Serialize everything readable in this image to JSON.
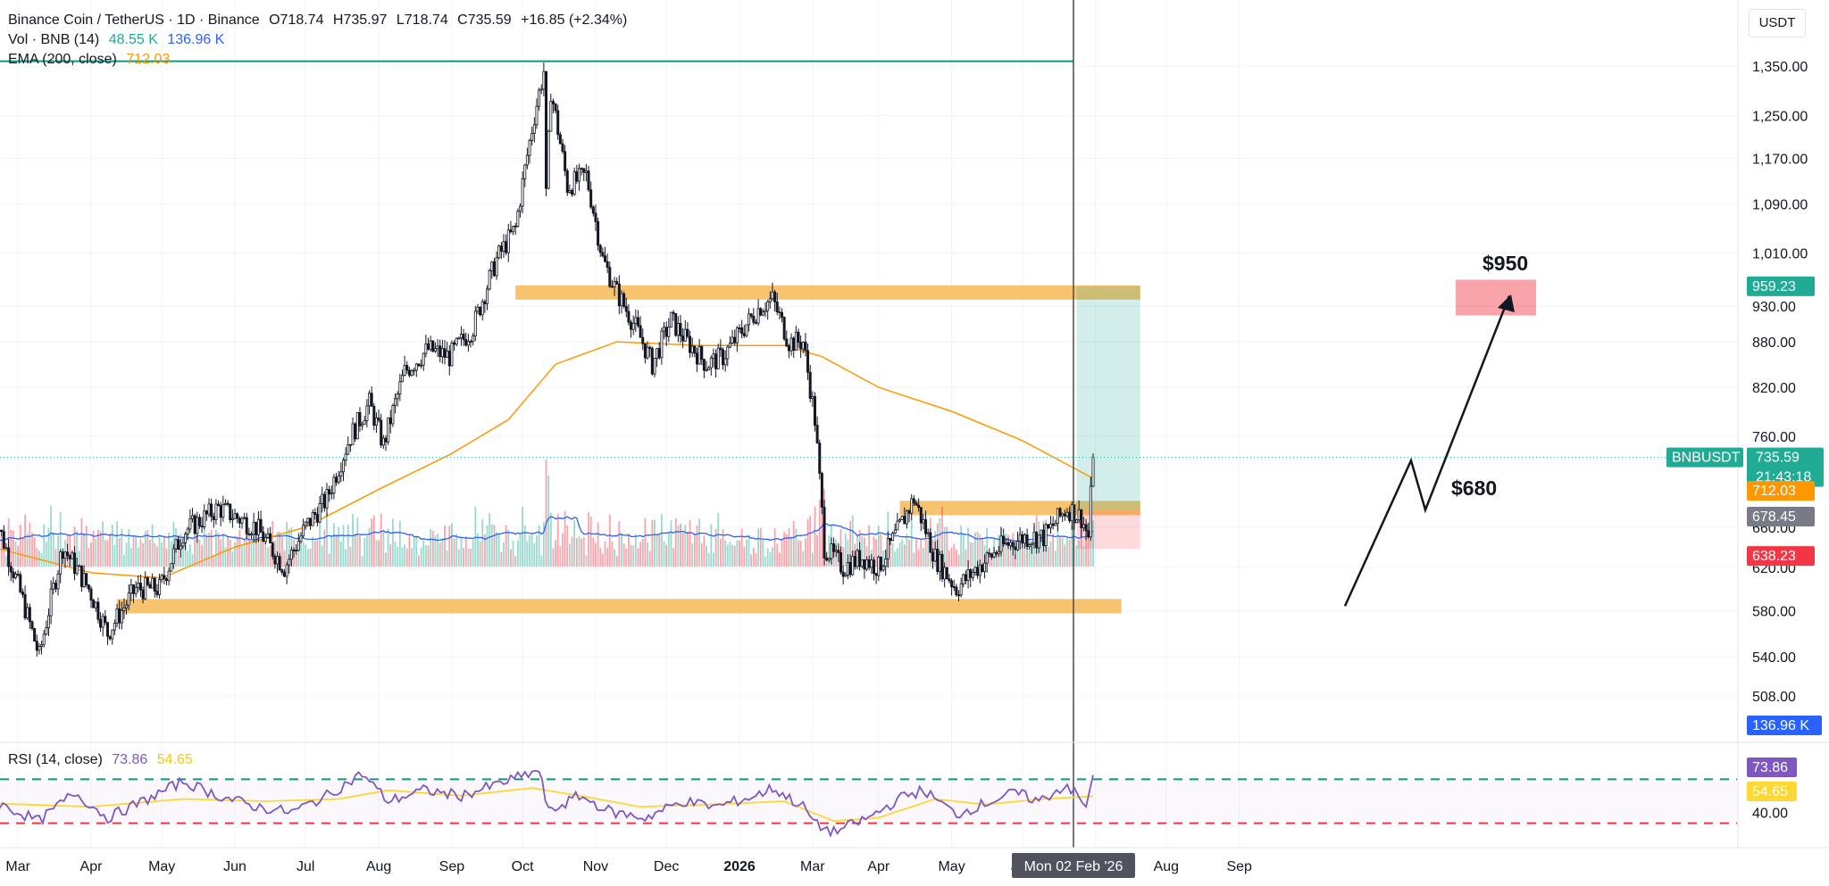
{
  "header": {
    "symbol": "Binance Coin / TetherUS · 1D · Binance",
    "open": "O718.74",
    "high": "H735.97",
    "low": "L718.74",
    "close": "C735.59",
    "change": "+16.85 (+2.34%)",
    "vol_label": "Vol · BNB (14)",
    "vol_value": "48.55 K",
    "vol_ma": "136.96 K",
    "ema_label": "EMA (200, close)",
    "ema_value": "712.03",
    "rsi_label": "RSI (14, close)",
    "rsi_value": "73.86",
    "rsi_ma": "54.65",
    "currency": "USDT"
  },
  "colors": {
    "up": "#22ab94",
    "down": "#f23645",
    "candle": "#131722",
    "ema": "#ff9800",
    "zone": "#f7b955",
    "vol_ma": "#2962ff",
    "rsi": "#7e57c2",
    "rsi_ma": "#fdd835",
    "target_zone": "#22ab94",
    "stop_zone": "#f23645"
  },
  "chart_data": {
    "type": "candlestick",
    "price_axis": {
      "scale": "log",
      "ticks": [
        "1,350.00",
        "1,250.00",
        "1,170.00",
        "1,090.00",
        "1,010.00",
        "930.00",
        "880.00",
        "820.00",
        "760.00",
        "660.00",
        "620.00",
        "580.00",
        "540.00",
        "508.00"
      ]
    },
    "time_axis": [
      "Mar",
      "Apr",
      "May",
      "Jun",
      "Jul",
      "Aug",
      "Sep",
      "Oct",
      "Nov",
      "Dec",
      "2026",
      "Mar",
      "Apr",
      "May",
      "Jun",
      "Jul",
      "Aug",
      "Sep"
    ],
    "crosshair_date": "Mon 02 Feb '26",
    "price_path": [
      [
        "2025-02-18",
        680
      ],
      [
        "2025-02-28",
        610
      ],
      [
        "2025-03-10",
        540
      ],
      [
        "2025-03-20",
        640
      ],
      [
        "2025-03-31",
        600
      ],
      [
        "2025-04-08",
        560
      ],
      [
        "2025-04-20",
        600
      ],
      [
        "2025-04-30",
        600
      ],
      [
        "2025-05-10",
        655
      ],
      [
        "2025-05-25",
        680
      ],
      [
        "2025-06-10",
        660
      ],
      [
        "2025-06-22",
        620
      ],
      [
        "2025-07-01",
        660
      ],
      [
        "2025-07-10",
        690
      ],
      [
        "2025-07-20",
        760
      ],
      [
        "2025-07-28",
        800
      ],
      [
        "2025-08-03",
        750
      ],
      [
        "2025-08-12",
        840
      ],
      [
        "2025-08-22",
        870
      ],
      [
        "2025-08-31",
        860
      ],
      [
        "2025-09-10",
        900
      ],
      [
        "2025-09-20",
        1000
      ],
      [
        "2025-09-28",
        1050
      ],
      [
        "2025-10-06",
        1250
      ],
      [
        "2025-10-10",
        1340
      ],
      [
        "2025-10-11",
        1100
      ],
      [
        "2025-10-13",
        1300
      ],
      [
        "2025-10-20",
        1120
      ],
      [
        "2025-10-28",
        1140
      ],
      [
        "2025-11-04",
        1000
      ],
      [
        "2025-11-10",
        950
      ],
      [
        "2025-11-18",
        900
      ],
      [
        "2025-11-25",
        850
      ],
      [
        "2025-12-03",
        910
      ],
      [
        "2025-12-10",
        880
      ],
      [
        "2025-12-18",
        850
      ],
      [
        "2025-12-25",
        860
      ],
      [
        "2026-01-03",
        900
      ],
      [
        "2026-01-10",
        930
      ],
      [
        "2026-01-15",
        940
      ],
      [
        "2026-01-22",
        880
      ],
      [
        "2026-01-28",
        880
      ],
      [
        "2026-02-02",
        780
      ],
      [
        "2026-02-06",
        640
      ],
      [
        "2026-02-14",
        620
      ],
      [
        "2026-02-22",
        630
      ],
      [
        "2026-03-01",
        620
      ],
      [
        "2026-03-10",
        660
      ],
      [
        "2026-03-16",
        690
      ],
      [
        "2026-03-25",
        630
      ],
      [
        "2026-04-03",
        600
      ],
      [
        "2026-04-12",
        620
      ],
      [
        "2026-04-22",
        640
      ],
      [
        "2026-05-02",
        650
      ],
      [
        "2026-05-10",
        650
      ],
      [
        "2026-05-20",
        680
      ],
      [
        "2026-05-26",
        670
      ],
      [
        "2026-05-29",
        650
      ],
      [
        "2026-05-31",
        735.59
      ]
    ],
    "ema_200_path": [
      [
        "2025-02-18",
        640
      ],
      [
        "2025-04-01",
        615
      ],
      [
        "2025-05-01",
        610
      ],
      [
        "2025-06-01",
        640
      ],
      [
        "2025-07-01",
        660
      ],
      [
        "2025-08-01",
        700
      ],
      [
        "2025-09-01",
        740
      ],
      [
        "2025-09-25",
        780
      ],
      [
        "2025-10-15",
        850
      ],
      [
        "2025-11-10",
        880
      ],
      [
        "2025-12-15",
        875
      ],
      [
        "2026-01-20",
        875
      ],
      [
        "2026-02-05",
        860
      ],
      [
        "2026-03-01",
        820
      ],
      [
        "2026-04-01",
        790
      ],
      [
        "2026-05-01",
        755
      ],
      [
        "2026-05-31",
        712.03
      ]
    ],
    "zones": [
      {
        "price": 950,
        "from": "2025-09-28",
        "to": "2026-06-20"
      },
      {
        "price": 680,
        "from": "2026-03-10",
        "to": "2026-06-20"
      },
      {
        "price": 584,
        "from": "2025-04-12",
        "to": "2026-06-12"
      }
    ],
    "position": {
      "entry": 678.45,
      "target": 959.23,
      "stop": 638.23,
      "from": "2026-05-24",
      "to": "2026-06-20",
      "target_label": "$950",
      "entry_label": "$680"
    },
    "price_labels": [
      {
        "text": "959.23",
        "price": 959.23,
        "color": "#22ab94"
      },
      {
        "text": "BNBUSDT",
        "price": 735.59,
        "color": "#22ab94"
      },
      {
        "text": "735.59",
        "price": 735.59,
        "color": "#22ab94"
      },
      {
        "text": "21:43:18",
        "price": 735.59,
        "color": "#22ab94"
      },
      {
        "text": "712.03",
        "price": 712.03,
        "color": "#ff9800"
      },
      {
        "text": "678.45",
        "price": 678.45,
        "color": "#787b86"
      },
      {
        "text": "638.23",
        "price": 638.23,
        "color": "#f23645"
      },
      {
        "text": "136.96 K",
        "price": null,
        "color": "#2962ff"
      }
    ],
    "rsi": {
      "upper": 70,
      "lower": 30,
      "ticks": [
        "40.00"
      ],
      "badges": [
        "73.86",
        "54.65"
      ],
      "path": [
        [
          "2025-02-18",
          50
        ],
        [
          "2025-03-10",
          32
        ],
        [
          "2025-03-25",
          58
        ],
        [
          "2025-04-08",
          35
        ],
        [
          "2025-04-25",
          52
        ],
        [
          "2025-05-10",
          68
        ],
        [
          "2025-05-25",
          55
        ],
        [
          "2025-06-10",
          45
        ],
        [
          "2025-06-25",
          40
        ],
        [
          "2025-07-10",
          55
        ],
        [
          "2025-07-25",
          75
        ],
        [
          "2025-08-05",
          50
        ],
        [
          "2025-08-20",
          60
        ],
        [
          "2025-09-05",
          55
        ],
        [
          "2025-09-20",
          65
        ],
        [
          "2025-10-08",
          78
        ],
        [
          "2025-10-12",
          40
        ],
        [
          "2025-10-25",
          55
        ],
        [
          "2025-11-08",
          40
        ],
        [
          "2025-11-22",
          35
        ],
        [
          "2025-12-08",
          50
        ],
        [
          "2025-12-22",
          45
        ],
        [
          "2026-01-08",
          55
        ],
        [
          "2026-01-15",
          62
        ],
        [
          "2026-01-28",
          45
        ],
        [
          "2026-02-03",
          28
        ],
        [
          "2026-02-10",
          22
        ],
        [
          "2026-02-25",
          35
        ],
        [
          "2026-03-12",
          55
        ],
        [
          "2026-03-20",
          60
        ],
        [
          "2026-04-03",
          38
        ],
        [
          "2026-04-15",
          48
        ],
        [
          "2026-04-28",
          58
        ],
        [
          "2026-05-08",
          50
        ],
        [
          "2026-05-20",
          65
        ],
        [
          "2026-05-28",
          45
        ],
        [
          "2026-05-31",
          73.86
        ]
      ],
      "ma_path": [
        [
          "2025-02-18",
          48
        ],
        [
          "2025-04-01",
          45
        ],
        [
          "2025-05-10",
          52
        ],
        [
          "2025-06-15",
          50
        ],
        [
          "2025-07-15",
          52
        ],
        [
          "2025-08-05",
          60
        ],
        [
          "2025-09-05",
          55
        ],
        [
          "2025-10-05",
          62
        ],
        [
          "2025-10-25",
          55
        ],
        [
          "2025-11-20",
          45
        ],
        [
          "2025-12-20",
          47
        ],
        [
          "2026-01-20",
          50
        ],
        [
          "2026-02-10",
          32
        ],
        [
          "2026-03-01",
          35
        ],
        [
          "2026-03-25",
          52
        ],
        [
          "2026-04-15",
          47
        ],
        [
          "2026-05-10",
          52
        ],
        [
          "2026-05-31",
          54.65
        ]
      ]
    }
  }
}
